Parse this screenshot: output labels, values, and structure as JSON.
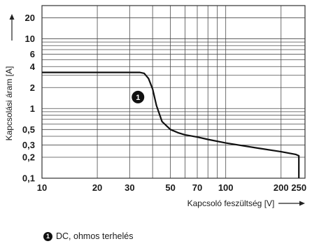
{
  "chart_data": {
    "type": "line",
    "x_scale": "log",
    "y_scale": "log",
    "xlabel": "Kapcsoló feszültség [V]",
    "ylabel": "Kapcsolási áram [A]",
    "xlim": [
      10,
      270
    ],
    "ylim": [
      0.1,
      30
    ],
    "x_ticks": [
      10,
      20,
      30,
      50,
      70,
      100,
      200,
      250
    ],
    "x_tick_labels": [
      "10",
      "20",
      "30",
      "50",
      "70",
      "100",
      "200",
      "250"
    ],
    "y_ticks": [
      0.1,
      0.2,
      0.3,
      0.5,
      1,
      2,
      4,
      6,
      10,
      20
    ],
    "y_tick_labels": [
      "0,1",
      "0,2",
      "0,3",
      "0,5",
      "1",
      "2",
      "4",
      "6",
      "10",
      "20"
    ],
    "grid": true,
    "series": [
      {
        "marker": "1",
        "x": [
          10,
          34,
          36,
          38,
          40,
          42,
          45,
          50,
          55,
          60,
          70,
          80,
          100,
          150,
          200,
          240,
          250,
          250
        ],
        "y": [
          3.3,
          3.3,
          3.2,
          2.7,
          1.9,
          1.1,
          0.65,
          0.5,
          0.45,
          0.42,
          0.39,
          0.36,
          0.32,
          0.27,
          0.24,
          0.22,
          0.21,
          0.1
        ]
      }
    ],
    "annotation": {
      "label": "1",
      "x": 37,
      "y": 1.6
    }
  },
  "legend": {
    "badge": "1",
    "text": "DC, ohmos terhelés"
  }
}
